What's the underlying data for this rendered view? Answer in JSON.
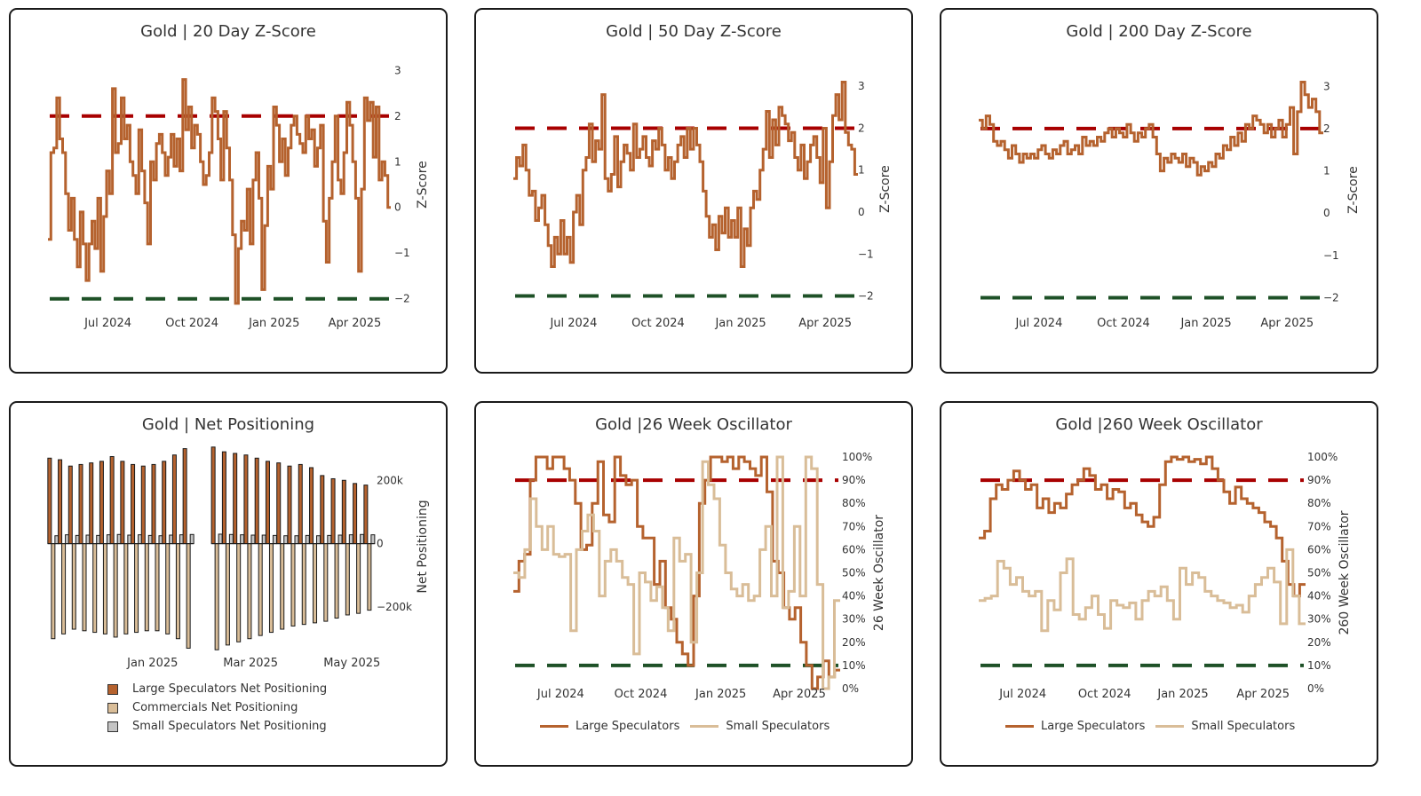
{
  "colors": {
    "large": "#b5622e",
    "commercials": "#d9bd98",
    "small": "#c4c4c4",
    "red_line": "#a80000",
    "green_line": "#1e5127"
  },
  "chart_data": [
    {
      "id": "z20",
      "type": "line",
      "title": "Gold | 20 Day Z-Score",
      "ylabel": "Z-Score",
      "ylim": [
        -2.2,
        3.2
      ],
      "yticks": [
        "3",
        "2",
        "1",
        "0",
        "−1",
        "−2"
      ],
      "ytick_values": [
        3,
        2,
        1,
        0,
        -1,
        -2
      ],
      "xticks": [
        "Jul 2024",
        "Oct 2024",
        "Jan 2025",
        "Apr 2025"
      ],
      "xtick_values": [
        0.175,
        0.42,
        0.66,
        0.895
      ],
      "thresholds": [
        2,
        -2
      ],
      "series": [
        {
          "values": [
            -0.7,
            1.2,
            1.3,
            2.4,
            1.5,
            1.2,
            0.3,
            -0.5,
            0.2,
            -0.7,
            -1.3,
            -0.1,
            -0.8,
            -1.6,
            -0.8,
            -0.3,
            -0.9,
            0.2,
            -1.4,
            -0.2,
            0.8,
            0.3,
            2.6,
            1.2,
            1.4,
            2.4,
            1.5,
            1.8,
            1.0,
            0.7,
            0.3,
            1.7,
            0.8,
            0.1,
            -0.8,
            1.0,
            0.6,
            1.4,
            1.6,
            1.2,
            0.7,
            1.1,
            1.6,
            0.9,
            1.5,
            0.8,
            2.8,
            1.7,
            2.2,
            1.3,
            1.8,
            1.6,
            1.0,
            0.5,
            0.7,
            1.2,
            2.4,
            2.1,
            1.5,
            0.6,
            2.1,
            1.3,
            0.6,
            -0.6,
            -2.1,
            -0.9,
            -0.3,
            -0.5,
            0.4,
            -0.8,
            0.6,
            1.2,
            0.2,
            -1.8,
            -0.4,
            0.9,
            0.4,
            2.2,
            1.8,
            1.0,
            1.5,
            0.7,
            1.3,
            1.8,
            2.0,
            1.6,
            1.4,
            1.2,
            2.0,
            1.5,
            1.7,
            0.9,
            1.3,
            1.8,
            -0.3,
            -1.2,
            0.2,
            1.0,
            2.0,
            0.6,
            0.3,
            1.2,
            2.3,
            1.8,
            1.0,
            0.2,
            -1.4,
            0.4,
            2.4,
            1.9,
            2.3,
            1.1,
            2.2,
            0.6,
            1.0,
            0.7,
            0.0
          ]
        }
      ]
    },
    {
      "id": "z50",
      "type": "line",
      "title": "Gold | 50 Day Z-Score",
      "ylabel": "Z-Score",
      "ylim": [
        -2.2,
        3.3
      ],
      "yticks": [
        "3",
        "2",
        "1",
        "0",
        "−1",
        "−2"
      ],
      "ytick_values": [
        3,
        2,
        1,
        0,
        -1,
        -2
      ],
      "xticks": [
        "Jul 2024",
        "Oct 2024",
        "Jan 2025",
        "Apr 2025"
      ],
      "xtick_values": [
        0.175,
        0.42,
        0.66,
        0.905
      ],
      "thresholds": [
        2,
        -2
      ],
      "series": [
        {
          "values": [
            0.8,
            1.3,
            1.1,
            1.6,
            1.0,
            0.4,
            0.5,
            -0.2,
            0.1,
            0.4,
            -0.3,
            -0.8,
            -1.3,
            -0.6,
            -1.0,
            -0.2,
            -1.0,
            -0.6,
            -1.2,
            0.0,
            0.4,
            -0.3,
            1.0,
            1.3,
            2.1,
            1.2,
            1.7,
            1.5,
            2.8,
            0.8,
            0.5,
            0.9,
            1.8,
            0.6,
            1.2,
            1.6,
            1.4,
            1.0,
            2.1,
            1.3,
            1.5,
            1.8,
            1.3,
            1.1,
            1.7,
            1.5,
            2.0,
            1.6,
            1.0,
            1.3,
            0.8,
            1.2,
            1.6,
            1.8,
            1.3,
            2.0,
            1.5,
            2.0,
            1.6,
            1.2,
            0.5,
            -0.1,
            -0.6,
            -0.3,
            -0.9,
            -0.1,
            -0.5,
            0.1,
            -0.6,
            -0.2,
            -0.6,
            0.1,
            -1.3,
            -0.4,
            -0.8,
            0.1,
            0.5,
            0.3,
            1.0,
            1.5,
            2.4,
            1.3,
            2.2,
            1.6,
            2.5,
            2.3,
            2.1,
            1.7,
            1.9,
            1.3,
            1.0,
            1.6,
            0.8,
            1.2,
            1.6,
            1.8,
            1.3,
            0.7,
            2.0,
            0.1,
            1.2,
            2.3,
            2.8,
            2.2,
            3.1,
            1.9,
            1.6,
            1.5,
            0.9
          ]
        }
      ]
    },
    {
      "id": "z200",
      "type": "line",
      "title": "Gold | 200 Day Z-Score",
      "ylabel": "Z-Score",
      "ylim": [
        -2.2,
        3.3
      ],
      "yticks": [
        "3",
        "2",
        "1",
        "0",
        "−1",
        "−2"
      ],
      "ytick_values": [
        3,
        2,
        1,
        0,
        -1,
        -2
      ],
      "xticks": [
        "Jul 2024",
        "Oct 2024",
        "Jan 2025",
        "Apr 2025"
      ],
      "xtick_values": [
        0.175,
        0.42,
        0.66,
        0.895
      ],
      "thresholds": [
        2,
        -2
      ],
      "series": [
        {
          "values": [
            2.2,
            2.0,
            2.3,
            2.1,
            1.7,
            1.6,
            1.7,
            1.5,
            1.3,
            1.6,
            1.4,
            1.2,
            1.4,
            1.3,
            1.4,
            1.3,
            1.5,
            1.6,
            1.4,
            1.3,
            1.5,
            1.4,
            1.6,
            1.7,
            1.4,
            1.5,
            1.6,
            1.4,
            1.8,
            1.6,
            1.7,
            1.6,
            1.8,
            1.7,
            1.9,
            2.0,
            1.8,
            2.0,
            1.9,
            1.8,
            2.1,
            1.9,
            1.7,
            1.9,
            1.8,
            2.0,
            2.1,
            1.8,
            1.4,
            1.0,
            1.3,
            1.2,
            1.4,
            1.3,
            1.2,
            1.4,
            1.1,
            1.3,
            1.2,
            0.9,
            1.1,
            1.0,
            1.2,
            1.1,
            1.4,
            1.3,
            1.6,
            1.5,
            1.8,
            1.6,
            1.9,
            1.7,
            2.1,
            2.0,
            2.3,
            2.2,
            2.1,
            1.9,
            2.1,
            1.8,
            2.0,
            2.2,
            1.8,
            2.1,
            2.5,
            1.4,
            2.4,
            3.1,
            2.8,
            2.5,
            2.7,
            2.4,
            1.9
          ]
        }
      ]
    },
    {
      "id": "net",
      "type": "bar",
      "title": "Gold | Net Positioning",
      "ylabel": "Net Positioning",
      "ylim": [
        -340000,
        310000
      ],
      "yticks": [
        "200k",
        "0",
        "−200k"
      ],
      "ytick_values": [
        200000,
        0,
        -200000
      ],
      "xticks": [
        "Jan 2025",
        "Mar 2025",
        "May 2025"
      ],
      "xtick_values": [
        0.32,
        0.62,
        0.93
      ],
      "groups": [
        14,
        15
      ],
      "series": [
        {
          "name": "Large Speculators Net Positioning",
          "values": [
            270000,
            265000,
            245000,
            250000,
            255000,
            260000,
            275000,
            260000,
            250000,
            245000,
            250000,
            260000,
            280000,
            300000,
            305000,
            290000,
            285000,
            280000,
            270000,
            260000,
            255000,
            245000,
            250000,
            240000,
            215000,
            205000,
            200000,
            190000,
            185000
          ]
        },
        {
          "name": "Commercials Net Positioning",
          "values": [
            -300000,
            -285000,
            -270000,
            -275000,
            -280000,
            -285000,
            -295000,
            -285000,
            -280000,
            -275000,
            -275000,
            -285000,
            -300000,
            -330000,
            -335000,
            -320000,
            -310000,
            -300000,
            -290000,
            -280000,
            -270000,
            -260000,
            -255000,
            -250000,
            -245000,
            -235000,
            -225000,
            -220000,
            -210000
          ]
        },
        {
          "name": "Small Speculators Net Positioning",
          "values": [
            25000,
            28000,
            26000,
            27000,
            26000,
            28000,
            29000,
            27000,
            28000,
            26000,
            25000,
            27000,
            28000,
            29000,
            30000,
            29000,
            28000,
            27000,
            27000,
            26000,
            25000,
            25000,
            26000,
            25000,
            26000,
            27000,
            28000,
            29000,
            28000
          ]
        }
      ]
    },
    {
      "id": "osc26",
      "type": "line",
      "title": "Gold |26 Week Oscillator",
      "ylabel": "26 Week Oscillator",
      "ylim": [
        0,
        100
      ],
      "yticks": [
        "100%",
        "90%",
        "80%",
        "70%",
        "60%",
        "50%",
        "40%",
        "30%",
        "20%",
        "10%",
        "0%"
      ],
      "ytick_values": [
        100,
        90,
        80,
        70,
        60,
        50,
        40,
        30,
        20,
        10,
        0
      ],
      "xticks": [
        "Jul 2024",
        "Oct 2024",
        "Jan 2025",
        "Apr 2025"
      ],
      "xtick_values": [
        0.145,
        0.39,
        0.635,
        0.875
      ],
      "thresholds": [
        90,
        10
      ],
      "series": [
        {
          "name": "Large Speculators",
          "values": [
            42,
            55,
            58,
            90,
            100,
            100,
            95,
            100,
            100,
            95,
            90,
            80,
            60,
            62,
            80,
            98,
            75,
            72,
            100,
            92,
            88,
            90,
            70,
            65,
            65,
            45,
            55,
            35,
            30,
            20,
            15,
            10,
            40,
            80,
            90,
            100,
            100,
            98,
            100,
            95,
            100,
            98,
            95,
            92,
            100,
            85,
            55,
            50,
            35,
            30,
            35,
            20,
            10,
            0,
            5,
            12,
            5,
            8
          ]
        },
        {
          "name": "Small Speculators",
          "values": [
            50,
            48,
            60,
            82,
            70,
            60,
            70,
            58,
            57,
            58,
            25,
            60,
            68,
            75,
            68,
            40,
            55,
            60,
            55,
            48,
            45,
            15,
            50,
            46,
            38,
            44,
            35,
            25,
            65,
            55,
            58,
            20,
            50,
            98,
            88,
            82,
            62,
            50,
            43,
            40,
            45,
            38,
            40,
            60,
            70,
            40,
            100,
            35,
            42,
            70,
            40,
            100,
            95,
            45,
            0,
            5,
            38
          ]
        }
      ]
    },
    {
      "id": "osc260",
      "type": "line",
      "title": "Gold |260 Week Oscillator",
      "ylabel": "260 Week Oscillator",
      "ylim": [
        0,
        100
      ],
      "yticks": [
        "100%",
        "90%",
        "80%",
        "70%",
        "60%",
        "50%",
        "40%",
        "30%",
        "20%",
        "10%",
        "0%"
      ],
      "ytick_values": [
        100,
        90,
        80,
        70,
        60,
        50,
        40,
        30,
        20,
        10,
        0
      ],
      "xticks": [
        "Jul 2024",
        "Oct 2024",
        "Jan 2025",
        "Apr 2025"
      ],
      "xtick_values": [
        0.135,
        0.385,
        0.625,
        0.87
      ],
      "thresholds": [
        90,
        10
      ],
      "series": [
        {
          "name": "Large Speculators",
          "values": [
            65,
            68,
            82,
            88,
            86,
            90,
            94,
            90,
            86,
            88,
            78,
            82,
            76,
            80,
            78,
            84,
            88,
            90,
            95,
            92,
            86,
            88,
            82,
            86,
            85,
            78,
            80,
            75,
            72,
            70,
            74,
            88,
            98,
            100,
            99,
            100,
            98,
            99,
            97,
            100,
            95,
            90,
            85,
            80,
            87,
            82,
            80,
            78,
            76,
            72,
            70,
            65,
            55,
            45,
            40,
            45
          ]
        },
        {
          "name": "Small Speculators",
          "values": [
            38,
            39,
            40,
            55,
            52,
            45,
            48,
            42,
            40,
            42,
            25,
            38,
            34,
            50,
            56,
            32,
            30,
            35,
            40,
            32,
            26,
            38,
            36,
            35,
            37,
            30,
            38,
            42,
            40,
            44,
            38,
            30,
            52,
            45,
            50,
            48,
            42,
            40,
            38,
            37,
            35,
            36,
            33,
            40,
            45,
            48,
            52,
            46,
            28,
            60,
            40,
            28
          ]
        }
      ]
    }
  ]
}
